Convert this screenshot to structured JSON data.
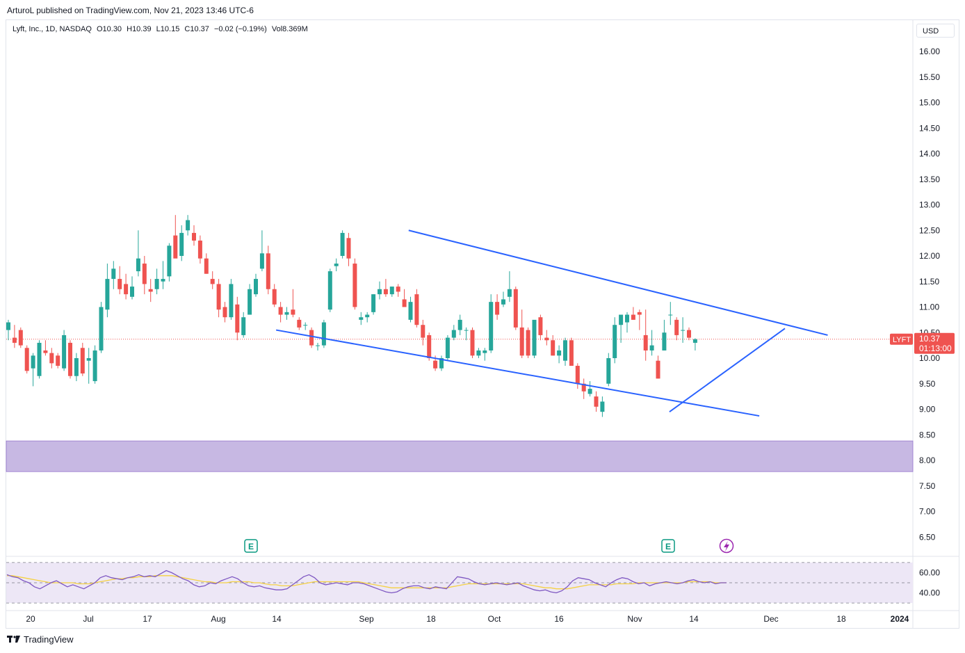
{
  "header": {
    "published_line": "ArturoL published on TradingView.com, Nov 21, 2023 13:46 UTC-6"
  },
  "legend": {
    "title": "Lyft, Inc., 1D, NASDAQ",
    "open": "O10.30",
    "high": "H10.39",
    "low": "L10.15",
    "close": "C10.37",
    "change": "−0.02 (−0.19%)",
    "volume": "Vol8.369M"
  },
  "price_scale": {
    "currency": "USD",
    "ticks": [
      "16.00",
      "15.50",
      "15.00",
      "14.50",
      "14.00",
      "13.50",
      "13.00",
      "12.50",
      "12.00",
      "11.50",
      "11.00",
      "10.50",
      "10.00",
      "9.50",
      "9.00",
      "8.50",
      "8.00",
      "7.50",
      "7.00",
      "6.50"
    ],
    "last_price_label": "LYFT",
    "last_price": "10.37",
    "countdown": "01:13:00"
  },
  "rsi_scale": {
    "ticks": [
      "60.00",
      "40.00"
    ]
  },
  "time_axis": {
    "labels": [
      "20",
      "Jul",
      "17",
      "Aug",
      "14",
      "Sep",
      "18",
      "Oct",
      "16",
      "Nov",
      "14",
      "Dec",
      "18",
      "2024"
    ]
  },
  "markers": {
    "earnings_label": "E"
  },
  "footer": {
    "brand": "TradingView"
  },
  "colors": {
    "up": "#26a69a",
    "down": "#ef5350",
    "trendline": "#2962ff",
    "zone": "#c7b8e3",
    "rsi_line": "#7e57c2",
    "rsi_ma": "#f5d142",
    "rsi_band": "#ede7f6"
  },
  "chart_data": {
    "type": "candlestick",
    "title": "Lyft, Inc., 1D, NASDAQ",
    "y_range": [
      6.2,
      16.6
    ],
    "x_range": [
      "2023-06-16",
      "2024-01-01"
    ],
    "series": [
      {
        "name": "LYFT",
        "candles_ohlc": [
          [
            10.55,
            10.75,
            10.35,
            10.7
          ],
          [
            10.4,
            10.65,
            10.2,
            10.3
          ],
          [
            10.55,
            10.6,
            10.2,
            10.25
          ],
          [
            10.2,
            10.25,
            9.7,
            9.75
          ],
          [
            9.8,
            10.1,
            9.45,
            10.05
          ],
          [
            9.65,
            10.35,
            9.6,
            10.3
          ],
          [
            10.15,
            10.35,
            10.05,
            10.1
          ],
          [
            10.1,
            10.2,
            9.8,
            9.9
          ],
          [
            10.05,
            10.1,
            9.8,
            9.85
          ],
          [
            9.8,
            10.55,
            9.75,
            10.45
          ],
          [
            10.3,
            10.35,
            9.6,
            9.65
          ],
          [
            9.65,
            10.1,
            9.55,
            10.0
          ],
          [
            10.2,
            10.3,
            9.65,
            9.7
          ],
          [
            9.95,
            10.2,
            9.5,
            10.0
          ],
          [
            9.55,
            10.25,
            9.5,
            10.15
          ],
          [
            10.15,
            11.1,
            10.1,
            11.0
          ],
          [
            10.95,
            11.85,
            10.8,
            11.55
          ],
          [
            11.55,
            11.9,
            11.35,
            11.75
          ],
          [
            11.55,
            11.8,
            11.25,
            11.35
          ],
          [
            11.45,
            11.65,
            11.15,
            11.25
          ],
          [
            11.2,
            11.6,
            11.15,
            11.4
          ],
          [
            11.7,
            12.5,
            11.6,
            11.95
          ],
          [
            11.85,
            12.0,
            11.25,
            11.45
          ],
          [
            11.35,
            11.55,
            11.1,
            11.3
          ],
          [
            11.35,
            11.75,
            11.25,
            11.55
          ],
          [
            11.5,
            11.9,
            11.35,
            11.55
          ],
          [
            11.6,
            12.25,
            11.5,
            12.2
          ],
          [
            12.4,
            12.8,
            12.0,
            11.95
          ],
          [
            12.0,
            12.6,
            11.9,
            12.45
          ],
          [
            12.5,
            12.8,
            12.4,
            12.7
          ],
          [
            12.45,
            12.6,
            12.2,
            12.3
          ],
          [
            12.3,
            12.4,
            11.85,
            11.95
          ],
          [
            11.95,
            12.05,
            11.65,
            11.65
          ],
          [
            11.55,
            11.7,
            11.35,
            11.45
          ],
          [
            11.45,
            11.55,
            10.8,
            10.95
          ],
          [
            11.0,
            11.1,
            10.7,
            10.8
          ],
          [
            10.8,
            11.55,
            10.75,
            11.45
          ],
          [
            11.05,
            11.2,
            10.35,
            10.5
          ],
          [
            10.45,
            10.9,
            10.4,
            10.8
          ],
          [
            10.85,
            11.45,
            10.85,
            11.35
          ],
          [
            11.25,
            11.65,
            11.2,
            11.55
          ],
          [
            11.75,
            12.5,
            11.7,
            12.05
          ],
          [
            12.05,
            12.2,
            11.25,
            11.35
          ],
          [
            11.35,
            11.45,
            11.0,
            11.05
          ],
          [
            11.0,
            11.1,
            10.7,
            10.85
          ],
          [
            10.85,
            11.0,
            10.75,
            10.9
          ],
          [
            10.95,
            11.35,
            10.8,
            10.85
          ],
          [
            10.75,
            10.8,
            10.55,
            10.6
          ],
          [
            10.65,
            10.7,
            10.55,
            10.65
          ],
          [
            10.55,
            10.6,
            10.2,
            10.25
          ],
          [
            10.25,
            10.3,
            10.15,
            10.25
          ],
          [
            10.25,
            10.75,
            10.2,
            10.7
          ],
          [
            10.95,
            11.75,
            10.9,
            11.7
          ],
          [
            11.8,
            11.95,
            11.7,
            11.85
          ],
          [
            12.0,
            12.5,
            11.95,
            12.45
          ],
          [
            12.35,
            12.45,
            11.8,
            11.95
          ],
          [
            11.85,
            11.95,
            10.95,
            11.0
          ],
          [
            10.75,
            10.9,
            10.65,
            10.8
          ],
          [
            10.8,
            10.9,
            10.7,
            10.85
          ],
          [
            10.9,
            11.25,
            10.85,
            11.25
          ],
          [
            11.25,
            11.5,
            11.15,
            11.35
          ],
          [
            11.35,
            11.55,
            11.2,
            11.25
          ],
          [
            11.25,
            11.4,
            11.2,
            11.4
          ],
          [
            11.4,
            11.45,
            11.2,
            11.3
          ],
          [
            11.15,
            11.35,
            11.0,
            11.0
          ],
          [
            10.75,
            11.2,
            10.7,
            11.1
          ],
          [
            11.25,
            11.35,
            10.6,
            10.65
          ],
          [
            10.65,
            10.75,
            10.25,
            10.4
          ],
          [
            10.45,
            10.5,
            9.95,
            10.0
          ],
          [
            9.95,
            10.05,
            9.75,
            9.8
          ],
          [
            9.8,
            10.05,
            9.75,
            10.0
          ],
          [
            10.0,
            10.45,
            9.95,
            10.4
          ],
          [
            10.4,
            10.65,
            10.35,
            10.55
          ],
          [
            10.55,
            10.85,
            10.45,
            10.75
          ],
          [
            10.55,
            10.6,
            10.35,
            10.55
          ],
          [
            10.55,
            10.6,
            10.0,
            10.05
          ],
          [
            10.05,
            10.2,
            10.0,
            10.15
          ],
          [
            10.1,
            10.2,
            9.95,
            10.15
          ],
          [
            10.15,
            11.25,
            10.1,
            11.1
          ],
          [
            11.1,
            11.25,
            10.75,
            10.85
          ],
          [
            11.05,
            11.3,
            11.0,
            11.15
          ],
          [
            11.2,
            11.7,
            11.1,
            11.35
          ],
          [
            11.35,
            11.4,
            10.55,
            10.6
          ],
          [
            10.6,
            10.95,
            10.0,
            10.05
          ],
          [
            10.55,
            10.6,
            10.0,
            10.05
          ],
          [
            10.05,
            10.65,
            10.0,
            10.75
          ],
          [
            10.8,
            10.85,
            10.35,
            10.45
          ],
          [
            10.4,
            10.55,
            10.25,
            10.35
          ],
          [
            10.35,
            10.45,
            10.05,
            10.05
          ],
          [
            10.05,
            10.25,
            9.9,
            10.15
          ],
          [
            9.95,
            10.4,
            9.85,
            10.35
          ],
          [
            10.35,
            10.4,
            9.85,
            9.85
          ],
          [
            9.85,
            9.9,
            9.4,
            9.5
          ],
          [
            9.5,
            9.6,
            9.2,
            9.35
          ],
          [
            9.3,
            9.55,
            9.25,
            9.4
          ],
          [
            9.25,
            9.35,
            8.95,
            9.05
          ],
          [
            8.95,
            9.25,
            8.85,
            9.15
          ],
          [
            9.5,
            10.1,
            9.45,
            10.0
          ],
          [
            10.0,
            10.8,
            9.9,
            10.65
          ],
          [
            10.65,
            10.8,
            10.3,
            10.85
          ],
          [
            10.7,
            10.9,
            10.5,
            10.85
          ],
          [
            10.85,
            11.0,
            10.75,
            10.75
          ],
          [
            10.9,
            10.95,
            10.55,
            10.85
          ],
          [
            10.45,
            10.95,
            9.95,
            10.15
          ],
          [
            10.15,
            10.55,
            10.05,
            10.25
          ],
          [
            9.95,
            10.05,
            9.6,
            9.6
          ],
          [
            10.15,
            10.75,
            10.15,
            10.5
          ],
          [
            10.85,
            11.1,
            10.65,
            10.85
          ],
          [
            10.75,
            10.8,
            10.35,
            10.45
          ],
          [
            10.55,
            10.8,
            10.3,
            10.55
          ],
          [
            10.55,
            10.6,
            10.35,
            10.4
          ],
          [
            10.3,
            10.39,
            10.15,
            10.37
          ]
        ]
      }
    ],
    "annotations": {
      "trendlines": [
        {
          "from": [
            "2023-09-01",
            12.5
          ],
          "to": [
            "2023-12-08",
            10.45
          ]
        },
        {
          "from": [
            "2023-08-01",
            10.55
          ],
          "to": [
            "2023-11-22",
            8.87
          ]
        },
        {
          "from": [
            "2023-11-01",
            8.95
          ],
          "to": [
            "2023-11-28",
            10.58
          ]
        }
      ],
      "support_zone": [
        7.78,
        8.38
      ],
      "last_price_line": 10.37
    },
    "rsi": {
      "name": "RSI",
      "y_range": [
        28,
        72
      ],
      "band": [
        30,
        70
      ],
      "mid": 50,
      "values": [
        58,
        56,
        55,
        52,
        50,
        46,
        44,
        47,
        50,
        52,
        49,
        46,
        48,
        46,
        44,
        47,
        50,
        55,
        57,
        55,
        54,
        53,
        55,
        56,
        58,
        56,
        57,
        56,
        59,
        62,
        60,
        57,
        54,
        52,
        48,
        46,
        47,
        50,
        49,
        52,
        54,
        56,
        54,
        50,
        47,
        46,
        47,
        45,
        44,
        43,
        43,
        44,
        48,
        52,
        56,
        58,
        55,
        50,
        48,
        49,
        50,
        49,
        48,
        50,
        50,
        49,
        47,
        45,
        43,
        41,
        40,
        41,
        44,
        46,
        47,
        47,
        45,
        44,
        46,
        45,
        44,
        50,
        56,
        55,
        54,
        51,
        49,
        48,
        49,
        50,
        49,
        48,
        49,
        50,
        47,
        45,
        43,
        42,
        43,
        41,
        40,
        42,
        46,
        52,
        55,
        54,
        53,
        50,
        48,
        46,
        50,
        53,
        55,
        54,
        51,
        49,
        50,
        47,
        49,
        50,
        51,
        50,
        49,
        50,
        52,
        53,
        51,
        50,
        51,
        49,
        50,
        50
      ],
      "ma": [
        57,
        57,
        56,
        55,
        54,
        53,
        52,
        51,
        50,
        50,
        50,
        50,
        50,
        49,
        49,
        49,
        50,
        51,
        52,
        53,
        54,
        54,
        55,
        55,
        56,
        56,
        56,
        57,
        57,
        57,
        57,
        56,
        55,
        54,
        53,
        52,
        51,
        51,
        50,
        50,
        50,
        51,
        51,
        51,
        51,
        50,
        50,
        49,
        48,
        48,
        47,
        47,
        47,
        48,
        49,
        50,
        51,
        51,
        51,
        51,
        51,
        51,
        51,
        51,
        51,
        50,
        49,
        48,
        47,
        46,
        45,
        45,
        45,
        45,
        45,
        45,
        45,
        45,
        45,
        45,
        45,
        46,
        47,
        48,
        49,
        49,
        49,
        49,
        49,
        49,
        49,
        49,
        49,
        49,
        49,
        48,
        47,
        46,
        45,
        45,
        44,
        44,
        44,
        45,
        46,
        47,
        48,
        48,
        48,
        48,
        48,
        49,
        49,
        49,
        49,
        50,
        50,
        50,
        50,
        50,
        50,
        50,
        50,
        50,
        51,
        51,
        51,
        51,
        51,
        50,
        50,
        50
      ]
    },
    "earnings_dates": [
      "2023-08-09",
      "2023-11-09"
    ],
    "other_event_date": "2023-11-15",
    "xlabel": "",
    "ylabel": ""
  }
}
